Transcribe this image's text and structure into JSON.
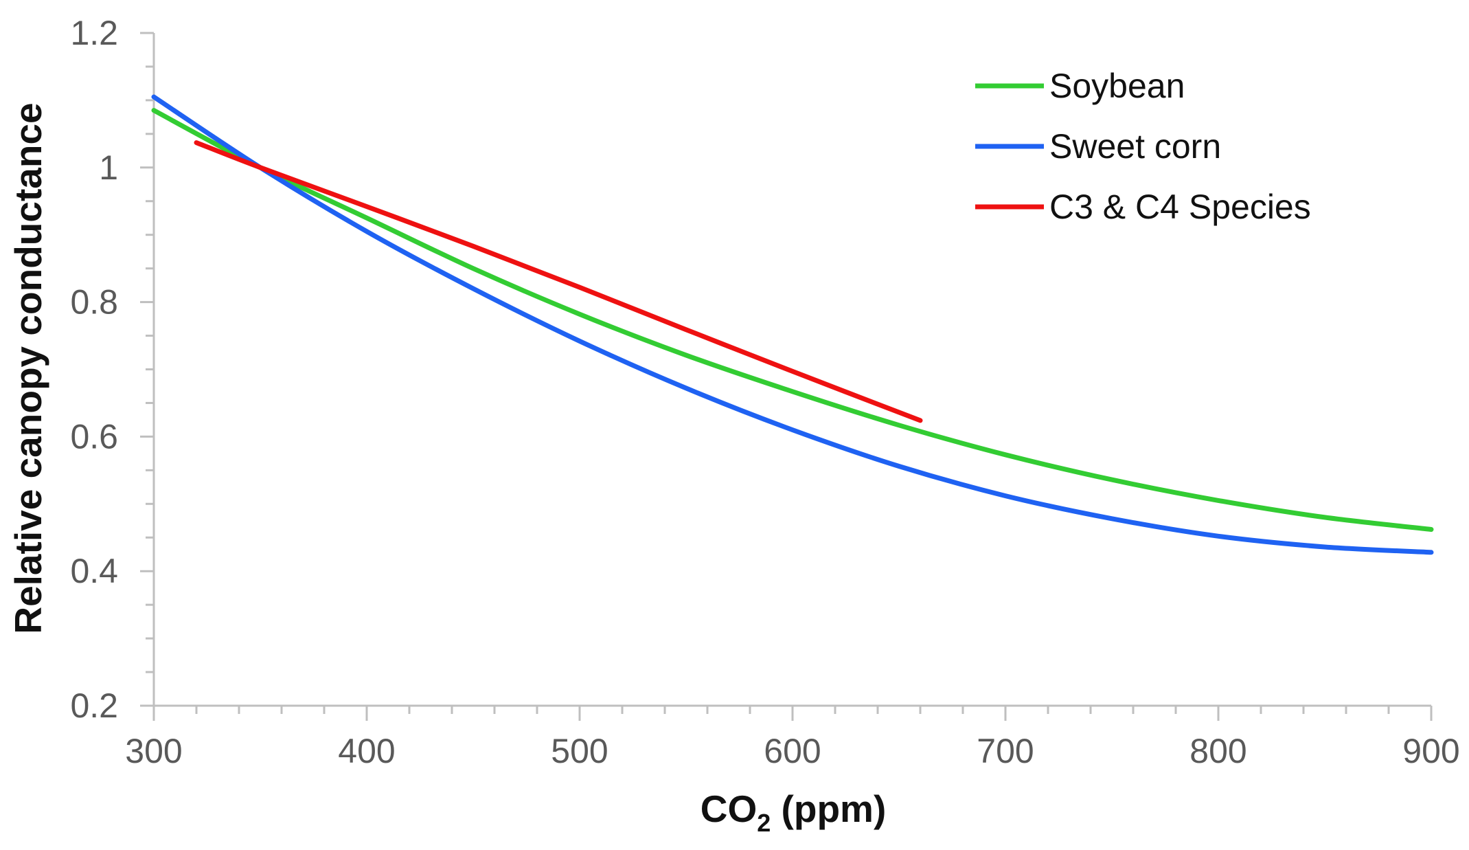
{
  "chart_data": {
    "type": "line",
    "title": "",
    "xlabel_main": "CO",
    "xlabel_sub": "2",
    "xlabel_tail": " (ppm)",
    "ylabel": "Relative canopy conductance",
    "xlim": [
      300,
      900
    ],
    "ylim": [
      0.2,
      1.2
    ],
    "x_ticks": [
      300,
      400,
      500,
      600,
      700,
      800,
      900
    ],
    "x_tick_labels": [
      "300",
      "400",
      "500",
      "600",
      "700",
      "800",
      "900"
    ],
    "y_ticks": [
      0.2,
      0.4,
      0.6,
      0.8,
      1.0,
      1.2
    ],
    "y_tick_labels": [
      "0.2",
      "0.4",
      "0.6",
      "0.8",
      "1",
      "1.2"
    ],
    "grid": false,
    "legend_position": "top-right",
    "series": [
      {
        "name": "Soybean",
        "color": "#33CC33",
        "x": [
          300,
          350,
          400,
          450,
          500,
          550,
          600,
          650,
          700,
          750,
          800,
          850,
          900
        ],
        "y": [
          1.085,
          1.0,
          0.925,
          0.85,
          0.782,
          0.721,
          0.667,
          0.617,
          0.573,
          0.536,
          0.505,
          0.48,
          0.462
        ]
      },
      {
        "name": "Sweet corn",
        "color": "#1F62F2",
        "x": [
          300,
          350,
          400,
          450,
          500,
          550,
          600,
          650,
          700,
          750,
          800,
          850,
          900
        ],
        "y": [
          1.105,
          1.0,
          0.905,
          0.82,
          0.742,
          0.672,
          0.61,
          0.556,
          0.512,
          0.478,
          0.452,
          0.436,
          0.428
        ]
      },
      {
        "name": "C3 & C4 Species",
        "color": "#EE1111",
        "x": [
          320,
          350,
          400,
          450,
          500,
          550,
          600,
          660
        ],
        "y": [
          1.037,
          1.0,
          0.942,
          0.883,
          0.822,
          0.759,
          0.697,
          0.624
        ]
      }
    ]
  }
}
